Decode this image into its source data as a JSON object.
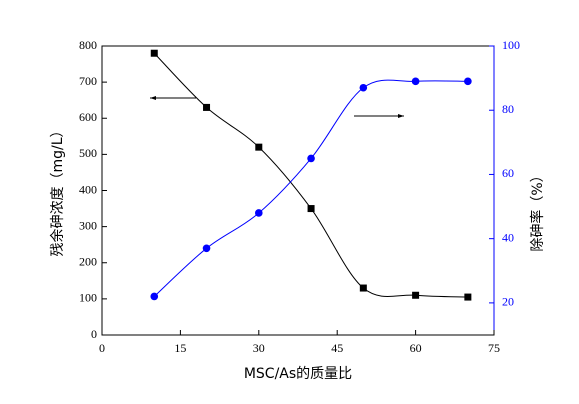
{
  "chart_data": {
    "type": "line",
    "x_label": "MSC/As的质量比",
    "y_label": "残余砷浓度（mg/L）",
    "y2_label": "除砷率（%）",
    "x": [
      10,
      20,
      30,
      40,
      50,
      60,
      70
    ],
    "series": [
      {
        "name": "残余砷浓度",
        "color": "#000000",
        "marker": "square",
        "values": [
          780,
          630,
          520,
          350,
          130,
          110,
          105
        ]
      },
      {
        "name": "除砷率",
        "color": "#0000ff",
        "marker": "circle",
        "axis": "y2",
        "values": [
          22,
          37,
          48,
          65,
          87,
          89,
          89
        ]
      }
    ],
    "xlim": [
      0,
      75
    ],
    "xticks": [
      0,
      15,
      30,
      45,
      60,
      75
    ],
    "ylim": [
      0,
      800
    ],
    "yticks": [
      0,
      100,
      200,
      300,
      400,
      500,
      600,
      700,
      800
    ],
    "y2lim": [
      10,
      100
    ],
    "y2ticks": [
      20,
      40,
      60,
      80,
      100
    ]
  }
}
